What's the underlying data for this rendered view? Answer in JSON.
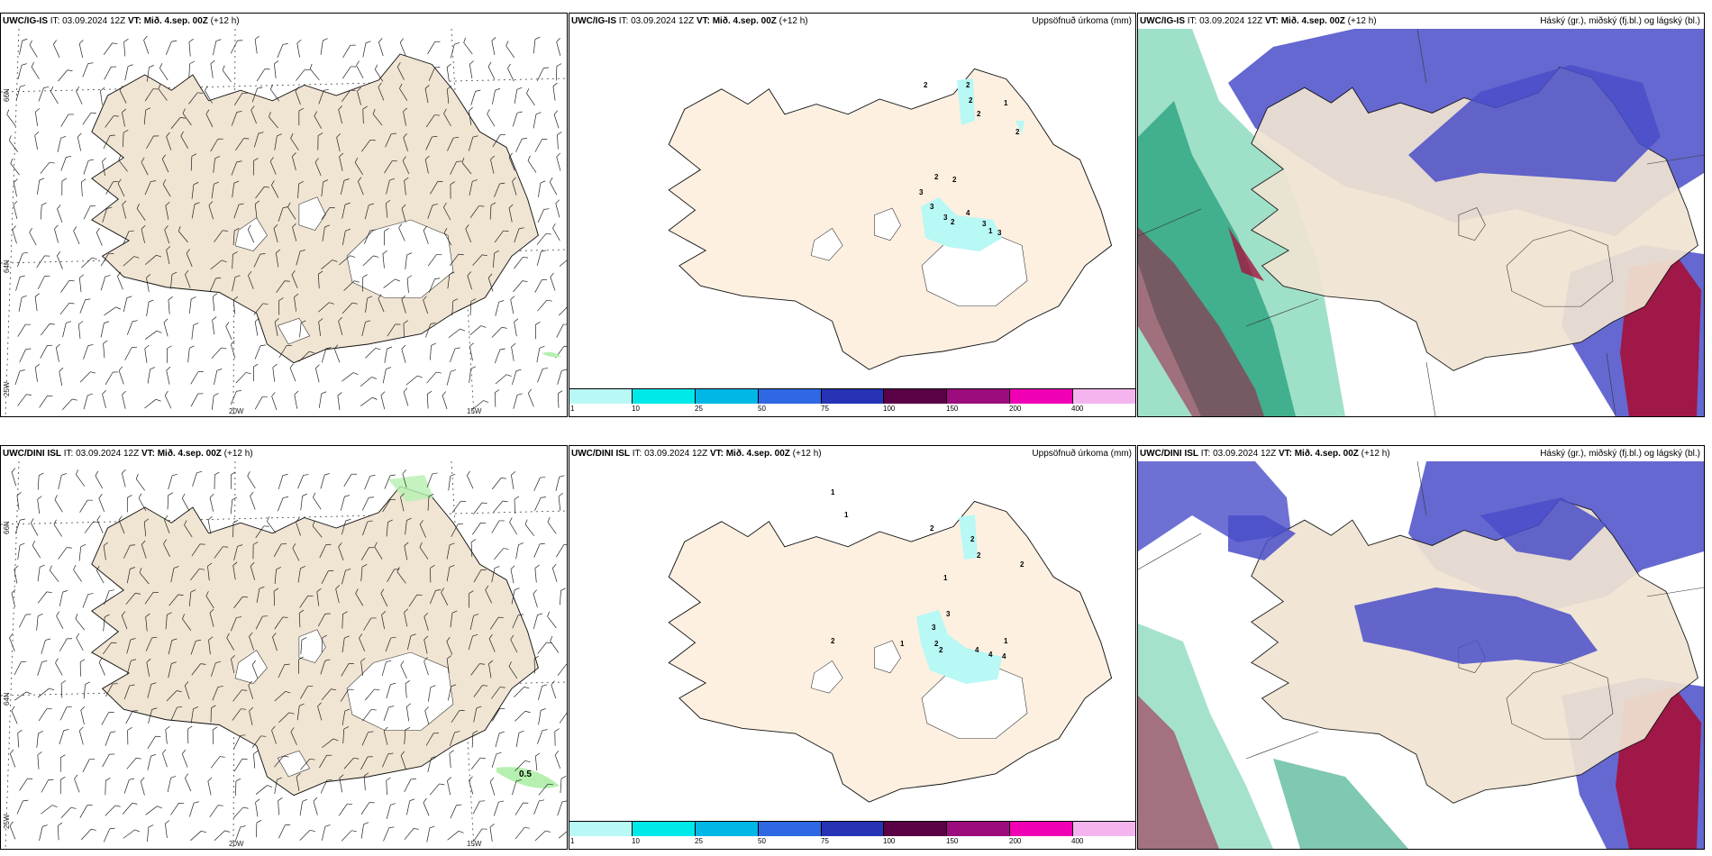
{
  "panels": {
    "top_left": {
      "model": "UWC/IG-IS",
      "rest": " IT: 03.09.2024 12Z ",
      "vt_label": "VT: Mið. 4.sep. 00Z",
      "lead": " (+12 h)"
    },
    "top_mid": {
      "model": "UWC/IG-IS",
      "rest": " IT: 03.09.2024 12Z ",
      "vt_label": "VT: Mið. 4.sep. 00Z",
      "lead": " (+12 h)",
      "right_title": "Uppsöfnuð úrkoma (mm)"
    },
    "top_right": {
      "model": "UWC/IG-IS",
      "rest": " IT: 03.09.2024 12Z ",
      "vt_label": "VT: Mið. 4.sep. 00Z",
      "lead": " (+12 h)",
      "right_title": "Háský (gr.), miðský (fj.bl.) og lágský (bl.)"
    },
    "bot_left": {
      "model": "UWC/DINI ISL",
      "rest": " IT: 03.09.2024 12Z ",
      "vt_label": "VT: Mið. 4.sep. 00Z",
      "lead": " (+12 h)"
    },
    "bot_mid": {
      "model": "UWC/DINI ISL",
      "rest": " IT: 03.09.2024 12Z ",
      "vt_label": "VT: Mið. 4.sep. 00Z",
      "lead": " (+12 h)",
      "right_title": "Uppsöfnuð úrkoma (mm)"
    },
    "bot_right": {
      "model": "UWC/DINI ISL",
      "rest": " IT: 03.09.2024 12Z ",
      "vt_label": "VT: Mið. 4.sep. 00Z",
      "lead": " (+12 h)",
      "right_title": "Háský (gr.), miðský (fj.bl.) og lágský (bl.)"
    }
  },
  "grid_labels": {
    "lat_66": "66N",
    "lat_64": "64N",
    "lon_25": "25W",
    "lon_20": "20W",
    "lon_15": "15W",
    "isoline": "0.5"
  },
  "colorbar": {
    "labels": [
      "1",
      "10",
      "25",
      "50",
      "75",
      "100",
      "150",
      "200",
      "400"
    ],
    "colors": [
      "#b8f8f5",
      "#00e9e9",
      "#00b7e6",
      "#2f68e3",
      "#2633b5",
      "#5a0045",
      "#9c0c7c",
      "#f000b4",
      "#f4b5ef"
    ]
  },
  "precip_numbers_top": [
    "2",
    "2",
    "2",
    "2",
    "1",
    "2",
    "2",
    "2",
    "3",
    "3",
    "3",
    "1",
    "3",
    "2",
    "3",
    "4"
  ],
  "precip_numbers_bot": [
    "1",
    "1",
    "2",
    "2",
    "2",
    "2",
    "1",
    "3",
    "3",
    "2",
    "2",
    "4",
    "4",
    "4",
    "1",
    "1",
    "2"
  ],
  "colors": {
    "land": "#f0e4d2",
    "land_mid": "#fdf0e1",
    "high_cloud": "#28b38a",
    "mid_cloud": "#4a4ec8",
    "low_cloud": "#a3143f",
    "sea": "#ffffff"
  }
}
